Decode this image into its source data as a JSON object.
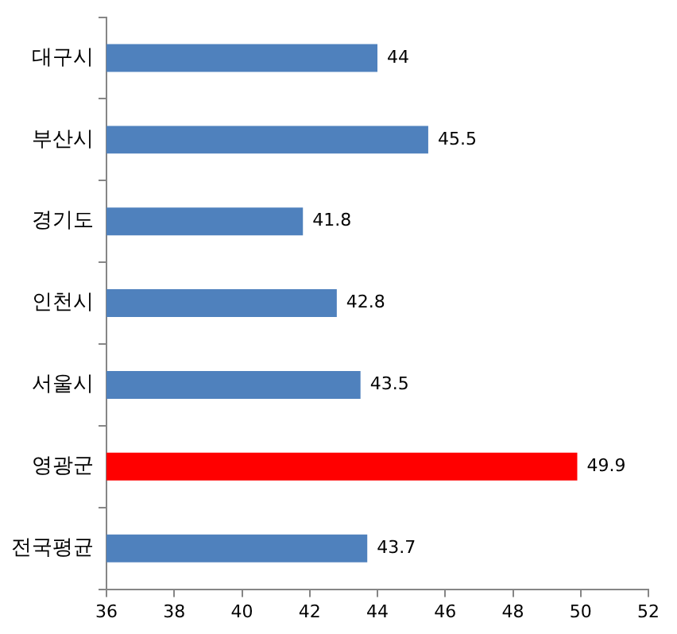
{
  "chart_data": {
    "type": "bar",
    "orientation": "horizontal",
    "categories": [
      "대구시",
      "부산시",
      "경기도",
      "인천시",
      "서울시",
      "영광군",
      "전국평균"
    ],
    "values": [
      44,
      45.5,
      41.8,
      42.8,
      43.5,
      49.9,
      43.7
    ],
    "colors": [
      "#4f81bd",
      "#4f81bd",
      "#4f81bd",
      "#4f81bd",
      "#4f81bd",
      "#ff0000",
      "#4f81bd"
    ],
    "xlim": [
      36,
      52
    ],
    "xticks": [
      36,
      38,
      40,
      42,
      44,
      46,
      48,
      50,
      52
    ],
    "grid": false,
    "legend": false,
    "data_labels": true
  }
}
